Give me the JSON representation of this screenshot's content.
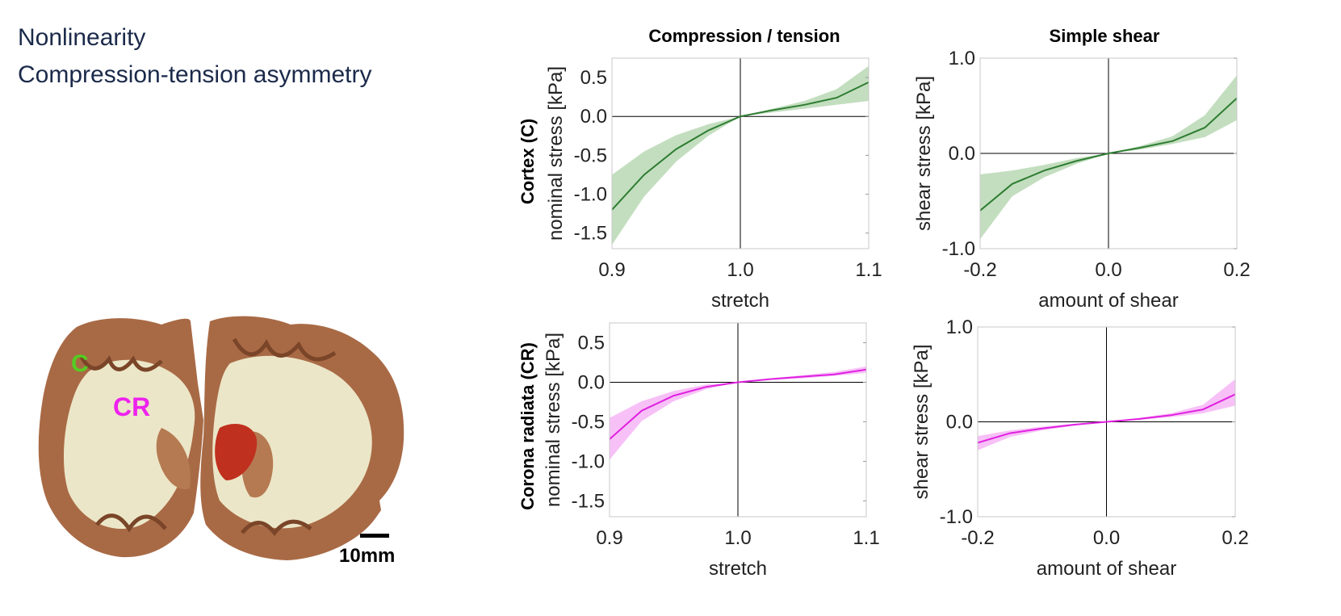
{
  "headline": [
    "Nonlinearity",
    "Compression-tension asymmetry"
  ],
  "image": {
    "labels": {
      "cortex": "C",
      "corona": "CR"
    },
    "scalebar": "10mm",
    "colors": {
      "cortex_label": "#55cc22",
      "corona_label": "#ee22ee"
    }
  },
  "columns": [
    "Compression / tension",
    "Simple shear"
  ],
  "rows": [
    "Cortex (C)",
    "Corona radiata (CR)"
  ],
  "colors": {
    "cortex": "#2e7d32",
    "cortex_band": "#b8d8b4",
    "corona": "#e020e0",
    "corona_band": "#f6b6f6"
  },
  "chart_data": [
    {
      "type": "line",
      "row": "Cortex (C)",
      "column": "Compression / tension",
      "xlabel": "stretch",
      "ylabel": "nominal stress [kPa]",
      "xlim": [
        0.9,
        1.1
      ],
      "ylim": [
        -1.7,
        0.75
      ],
      "xticks": [
        "0.9",
        "1.0",
        "1.1"
      ],
      "yticks": [
        "0.5",
        "0.0",
        "-0.5",
        "-1.0",
        "-1.5"
      ],
      "x": [
        0.9,
        0.925,
        0.95,
        0.975,
        1.0,
        1.025,
        1.05,
        1.075,
        1.1
      ],
      "series": [
        {
          "mean": [
            -1.2,
            -0.75,
            -0.42,
            -0.18,
            0.0,
            0.08,
            0.15,
            0.24,
            0.44
          ],
          "lower": [
            -1.65,
            -1.03,
            -0.58,
            -0.25,
            0.0,
            0.05,
            0.1,
            0.15,
            0.2
          ],
          "upper": [
            -0.75,
            -0.45,
            -0.24,
            -0.1,
            0.0,
            0.1,
            0.2,
            0.35,
            0.65
          ]
        }
      ]
    },
    {
      "type": "line",
      "row": "Cortex (C)",
      "column": "Simple shear",
      "xlabel": "amount of shear",
      "ylabel": "shear stress [kPa]",
      "xlim": [
        -0.2,
        0.2
      ],
      "ylim": [
        -1.0,
        1.0
      ],
      "xticks": [
        "-0.2",
        "0.0",
        "0.2"
      ],
      "yticks": [
        "1.0",
        "0.0",
        "-1.0"
      ],
      "x": [
        -0.2,
        -0.15,
        -0.1,
        -0.05,
        0.0,
        0.05,
        0.1,
        0.15,
        0.2
      ],
      "series": [
        {
          "mean": [
            -0.6,
            -0.32,
            -0.18,
            -0.08,
            0.0,
            0.06,
            0.13,
            0.27,
            0.58
          ],
          "lower": [
            -0.9,
            -0.45,
            -0.25,
            -0.11,
            0.0,
            0.04,
            0.1,
            0.17,
            0.35
          ],
          "upper": [
            -0.22,
            -0.18,
            -0.12,
            -0.05,
            0.0,
            0.08,
            0.18,
            0.4,
            0.82
          ]
        }
      ]
    },
    {
      "type": "line",
      "row": "Corona radiata (CR)",
      "column": "Compression / tension",
      "xlabel": "stretch",
      "ylabel": "nominal stress [kPa]",
      "xlim": [
        0.9,
        1.1
      ],
      "ylim": [
        -1.7,
        0.75
      ],
      "xticks": [
        "0.9",
        "1.0",
        "1.1"
      ],
      "yticks": [
        "0.5",
        "0.0",
        "-0.5",
        "-1.0",
        "-1.5"
      ],
      "x": [
        0.9,
        0.925,
        0.95,
        0.975,
        1.0,
        1.025,
        1.05,
        1.075,
        1.1
      ],
      "series": [
        {
          "mean": [
            -0.72,
            -0.36,
            -0.17,
            -0.06,
            0.0,
            0.04,
            0.07,
            0.1,
            0.16
          ],
          "lower": [
            -0.98,
            -0.49,
            -0.24,
            -0.09,
            0.0,
            0.03,
            0.05,
            0.08,
            0.12
          ],
          "upper": [
            -0.45,
            -0.24,
            -0.11,
            -0.03,
            0.0,
            0.05,
            0.09,
            0.13,
            0.2
          ]
        }
      ]
    },
    {
      "type": "line",
      "row": "Corona radiata (CR)",
      "column": "Simple shear",
      "xlabel": "amount of shear",
      "ylabel": "shear stress [kPa]",
      "xlim": [
        -0.2,
        0.2
      ],
      "ylim": [
        -1.0,
        1.0
      ],
      "xticks": [
        "-0.2",
        "0.0",
        "0.2"
      ],
      "yticks": [
        "1.0",
        "0.0",
        "-1.0"
      ],
      "x": [
        -0.2,
        -0.15,
        -0.1,
        -0.05,
        0.0,
        0.05,
        0.1,
        0.15,
        0.2
      ],
      "series": [
        {
          "mean": [
            -0.22,
            -0.12,
            -0.07,
            -0.03,
            0.0,
            0.03,
            0.07,
            0.13,
            0.29
          ],
          "lower": [
            -0.3,
            -0.16,
            -0.09,
            -0.04,
            0.0,
            0.02,
            0.05,
            0.09,
            0.17
          ],
          "upper": [
            -0.15,
            -0.09,
            -0.05,
            -0.02,
            0.0,
            0.04,
            0.09,
            0.18,
            0.45
          ]
        }
      ]
    }
  ]
}
